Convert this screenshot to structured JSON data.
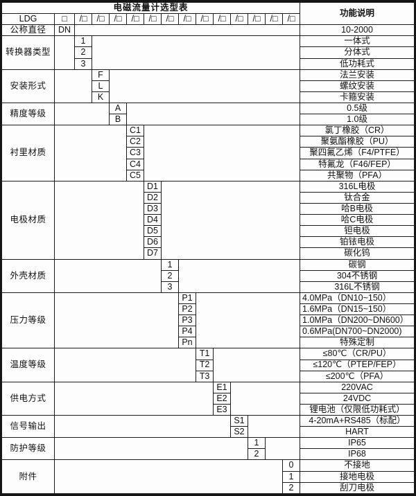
{
  "table": {
    "title": "电磁流量计选型表",
    "desc_header": "功能说明",
    "model": {
      "prefix": "LDG",
      "first_box": "□",
      "slash_box": "/□",
      "slash_box_count": 13
    },
    "sections": [
      {
        "name": "nominal-diameter",
        "label": "公称直径",
        "code_col": 1,
        "rows": [
          {
            "code": "DN",
            "desc": "10-2000"
          }
        ]
      },
      {
        "name": "converter-type",
        "label": "转换器类型",
        "code_col": 2,
        "rows": [
          {
            "code": "1",
            "desc": "一体式"
          },
          {
            "code": "2",
            "desc": "分体式"
          },
          {
            "code": "3",
            "desc": "低功耗式"
          }
        ]
      },
      {
        "name": "installation-type",
        "label": "安装形式",
        "code_col": 3,
        "rows": [
          {
            "code": "F",
            "desc": "法兰安装"
          },
          {
            "code": "L",
            "desc": "螺纹安装"
          },
          {
            "code": "K",
            "desc": "卡箍安装"
          }
        ]
      },
      {
        "name": "accuracy-grade",
        "label": "精度等级",
        "code_col": 4,
        "rows": [
          {
            "code": "A",
            "desc": "0.5级"
          },
          {
            "code": "B",
            "desc": "1.0级"
          }
        ]
      },
      {
        "name": "lining-material",
        "label": "衬里材质",
        "code_col": 5,
        "rows": [
          {
            "code": "C1",
            "desc": "氯丁橡胶（CR）"
          },
          {
            "code": "C2",
            "desc": "聚氨酯橡胶（PU）"
          },
          {
            "code": "C3",
            "desc": "聚四氟乙烯（F4/PTFE）"
          },
          {
            "code": "C4",
            "desc": "特氟龙（F46/FEP）"
          },
          {
            "code": "C5",
            "desc": "共聚物（PFA）"
          }
        ]
      },
      {
        "name": "electrode-material",
        "label": "电极材质",
        "code_col": 6,
        "rows": [
          {
            "code": "D1",
            "desc": "316L电极"
          },
          {
            "code": "D2",
            "desc": "钛合金"
          },
          {
            "code": "D3",
            "desc": "哈B电极"
          },
          {
            "code": "D4",
            "desc": "哈C电极"
          },
          {
            "code": "D5",
            "desc": "钽电极"
          },
          {
            "code": "D6",
            "desc": "铂铱电极"
          },
          {
            "code": "D7",
            "desc": "碳化钨"
          }
        ]
      },
      {
        "name": "housing-material",
        "label": "外壳材质",
        "code_col": 7,
        "rows": [
          {
            "code": "1",
            "desc": "碳钢"
          },
          {
            "code": "2",
            "desc": "304不锈钢"
          },
          {
            "code": "3",
            "desc": "316L不锈钢"
          }
        ]
      },
      {
        "name": "pressure-grade",
        "label": "压力等级",
        "code_col": 8,
        "rows": [
          {
            "code": "P1",
            "desc": "4.0MPa（DN10~150）",
            "align": "left"
          },
          {
            "code": "P2",
            "desc": "1.6MPa（DN15~150）",
            "align": "left"
          },
          {
            "code": "P3",
            "desc": "1.0MPa（DN200~DN600）",
            "align": "left"
          },
          {
            "code": "P4",
            "desc": "0.6MPa(DN700~DN2000)",
            "align": "left"
          },
          {
            "code": "Pn",
            "desc": "特殊定制"
          }
        ]
      },
      {
        "name": "temperature-grade",
        "label": "温度等级",
        "code_col": 9,
        "rows": [
          {
            "code": "T1",
            "desc": "≤80℃（CR/PU）"
          },
          {
            "code": "T2",
            "desc": "≤120℃（PTEP/FEP）"
          },
          {
            "code": "T3",
            "desc": "≤200℃（PFA）"
          }
        ]
      },
      {
        "name": "power-supply",
        "label": "供电方式",
        "code_col": 10,
        "rows": [
          {
            "code": "E1",
            "desc": "220VAC"
          },
          {
            "code": "E2",
            "desc": "24VDC"
          },
          {
            "code": "E3",
            "desc": "锂电池（仅限低功耗式）"
          }
        ]
      },
      {
        "name": "signal-output",
        "label": "信号输出",
        "code_col": 11,
        "rows": [
          {
            "code": "S1",
            "desc": "4-20mA+RS485（标配）"
          },
          {
            "code": "S2",
            "desc": "HART"
          }
        ]
      },
      {
        "name": "protection-grade",
        "label": "防护等级",
        "code_col": 12,
        "rows": [
          {
            "code": "1",
            "desc": "IP65"
          },
          {
            "code": "2",
            "desc": "IP68"
          }
        ]
      },
      {
        "name": "accessories",
        "label": "附件",
        "code_col": 14,
        "rows": [
          {
            "code": "0",
            "desc": "不接地"
          },
          {
            "code": "1",
            "desc": "接地电极"
          },
          {
            "code": "2",
            "desc": "刮刀电极"
          }
        ]
      }
    ],
    "colors": {
      "border": "#1a1a1a",
      "ink": "#111111",
      "background": "#fdfdfd"
    }
  }
}
